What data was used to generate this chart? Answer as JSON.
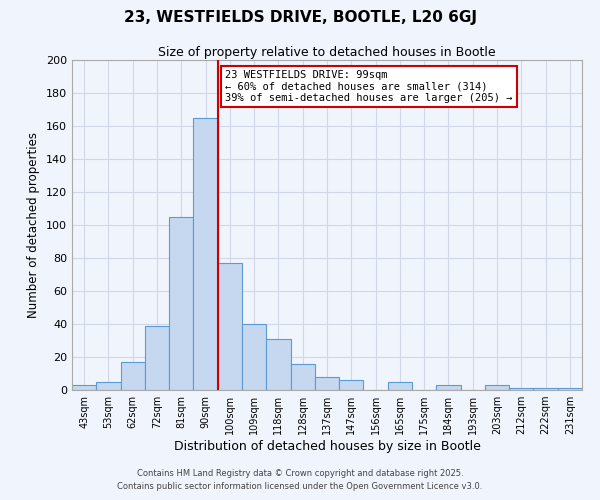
{
  "title": "23, WESTFIELDS DRIVE, BOOTLE, L20 6GJ",
  "subtitle": "Size of property relative to detached houses in Bootle",
  "xlabel": "Distribution of detached houses by size in Bootle",
  "ylabel": "Number of detached properties",
  "bin_labels": [
    "43sqm",
    "53sqm",
    "62sqm",
    "72sqm",
    "81sqm",
    "90sqm",
    "100sqm",
    "109sqm",
    "118sqm",
    "128sqm",
    "137sqm",
    "147sqm",
    "156sqm",
    "165sqm",
    "175sqm",
    "184sqm",
    "193sqm",
    "203sqm",
    "212sqm",
    "222sqm",
    "231sqm"
  ],
  "bar_heights": [
    3,
    5,
    17,
    39,
    105,
    165,
    77,
    40,
    31,
    16,
    8,
    6,
    0,
    5,
    0,
    3,
    0,
    3,
    1,
    1,
    1
  ],
  "bar_color": "#c5d8f0",
  "bar_edge_color": "#5b9bd5",
  "vline_color": "#cc0000",
  "ylim": [
    0,
    200
  ],
  "yticks": [
    0,
    20,
    40,
    60,
    80,
    100,
    120,
    140,
    160,
    180,
    200
  ],
  "annotation_title": "23 WESTFIELDS DRIVE: 99sqm",
  "annotation_line1": "← 60% of detached houses are smaller (314)",
  "annotation_line2": "39% of semi-detached houses are larger (205) →",
  "annotation_box_color": "#ffffff",
  "annotation_box_edge": "#cc0000",
  "grid_color": "#d0d8e8",
  "bg_color": "#f0f4fc",
  "footer1": "Contains HM Land Registry data © Crown copyright and database right 2025.",
  "footer2": "Contains public sector information licensed under the Open Government Licence v3.0."
}
